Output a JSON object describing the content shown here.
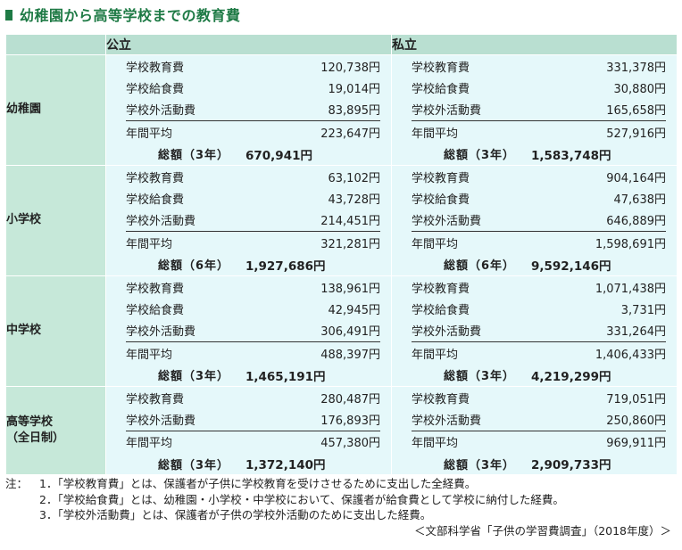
{
  "title": "幼稚園から高等学校までの教育費",
  "headers": {
    "public": "公立",
    "private": "私立"
  },
  "sections": [
    {
      "label_lines": [
        "幼稚園"
      ],
      "public": {
        "items": [
          {
            "label": "学校教育費",
            "value": "120,738円"
          },
          {
            "label": "学校給食費",
            "value": "19,014円"
          },
          {
            "label": "学校外活動費",
            "value": "83,895円"
          }
        ],
        "average": {
          "label": "年間平均",
          "value": "223,647円"
        },
        "total": {
          "label": "総額（3年）",
          "value": "670,941円"
        }
      },
      "private": {
        "items": [
          {
            "label": "学校教育費",
            "value": "331,378円"
          },
          {
            "label": "学校給食費",
            "value": "30,880円"
          },
          {
            "label": "学校外活動費",
            "value": "165,658円"
          }
        ],
        "average": {
          "label": "年間平均",
          "value": "527,916円"
        },
        "total": {
          "label": "総額（3年）",
          "value": "1,583,748円"
        }
      }
    },
    {
      "label_lines": [
        "小学校"
      ],
      "public": {
        "items": [
          {
            "label": "学校教育費",
            "value": "63,102円"
          },
          {
            "label": "学校給食費",
            "value": "43,728円"
          },
          {
            "label": "学校外活動費",
            "value": "214,451円"
          }
        ],
        "average": {
          "label": "年間平均",
          "value": "321,281円"
        },
        "total": {
          "label": "総額（6年）",
          "value": "1,927,686円"
        }
      },
      "private": {
        "items": [
          {
            "label": "学校教育費",
            "value": "904,164円"
          },
          {
            "label": "学校給食費",
            "value": "47,638円"
          },
          {
            "label": "学校外活動費",
            "value": "646,889円"
          }
        ],
        "average": {
          "label": "年間平均",
          "value": "1,598,691円"
        },
        "total": {
          "label": "総額（6年）",
          "value": "9,592,146円"
        }
      }
    },
    {
      "label_lines": [
        "中学校"
      ],
      "public": {
        "items": [
          {
            "label": "学校教育費",
            "value": "138,961円"
          },
          {
            "label": "学校給食費",
            "value": "42,945円"
          },
          {
            "label": "学校外活動費",
            "value": "306,491円"
          }
        ],
        "average": {
          "label": "年間平均",
          "value": "488,397円"
        },
        "total": {
          "label": "総額（3年）",
          "value": "1,465,191円"
        }
      },
      "private": {
        "items": [
          {
            "label": "学校教育費",
            "value": "1,071,438円"
          },
          {
            "label": "学校給食費",
            "value": "3,731円"
          },
          {
            "label": "学校外活動費",
            "value": "331,264円"
          }
        ],
        "average": {
          "label": "年間平均",
          "value": "1,406,433円"
        },
        "total": {
          "label": "総額（3年）",
          "value": "4,219,299円"
        }
      }
    },
    {
      "label_lines": [
        "高等学校",
        "（全日制）"
      ],
      "public": {
        "items": [
          {
            "label": "学校教育費",
            "value": "280,487円"
          },
          {
            "label": "学校外活動費",
            "value": "176,893円"
          }
        ],
        "average": {
          "label": "年間平均",
          "value": "457,380円"
        },
        "total": {
          "label": "総額（3年）",
          "value": "1,372,140円"
        }
      },
      "private": {
        "items": [
          {
            "label": "学校教育費",
            "value": "719,051円"
          },
          {
            "label": "学校外活動費",
            "value": "250,860円"
          }
        ],
        "average": {
          "label": "年間平均",
          "value": "969,911円"
        },
        "total": {
          "label": "総額（3年）",
          "value": "2,909,733円"
        }
      }
    }
  ],
  "notes": {
    "prefix": "注：",
    "lines": [
      "1．「学校教育費」とは、保護者が子供に学校教育を受けさせるために支出した全経費。",
      "2．「学校給食費」とは、幼稚園・小学校・中学校において、保護者が給食費として学校に納付した経費。",
      "3．「学校外活動費」とは、保護者が子供の学校外活動のために支出した経費。"
    ],
    "source": "＜文部科学省「子供の学習費調査」（2018年度）＞"
  },
  "colors": {
    "title": "#1e7a45",
    "header_bg": "#b9dfd1",
    "label_bg": "#c6e8d9",
    "cell_bg": "#e5f8fa"
  }
}
